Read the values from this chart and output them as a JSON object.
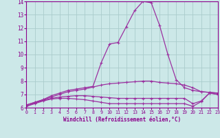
{
  "x_values": [
    0,
    1,
    2,
    3,
    4,
    5,
    6,
    7,
    8,
    9,
    10,
    11,
    12,
    13,
    14,
    15,
    16,
    17,
    18,
    19,
    20,
    21,
    22,
    23
  ],
  "lines": [
    {
      "y": [
        6.2,
        6.4,
        6.6,
        6.9,
        7.1,
        7.3,
        7.4,
        7.5,
        7.6,
        9.4,
        10.8,
        10.9,
        12.1,
        13.3,
        14.0,
        13.9,
        12.2,
        10.0,
        8.1,
        7.5,
        7.3,
        7.2,
        7.15,
        7.1
      ],
      "color": "#9B30A0",
      "marker": "+"
    },
    {
      "y": [
        6.2,
        6.4,
        6.6,
        6.8,
        7.0,
        7.2,
        7.3,
        7.4,
        7.55,
        7.7,
        7.8,
        7.85,
        7.9,
        7.95,
        8.0,
        8.0,
        7.9,
        7.85,
        7.8,
        7.7,
        7.5,
        7.2,
        7.15,
        7.1
      ],
      "color": "#9B30A0",
      "marker": "+"
    },
    {
      "y": [
        6.1,
        6.35,
        6.55,
        6.7,
        6.8,
        6.85,
        6.9,
        6.9,
        6.85,
        6.8,
        6.75,
        6.7,
        6.7,
        6.7,
        6.7,
        6.7,
        6.7,
        6.7,
        6.7,
        6.7,
        6.3,
        6.5,
        7.1,
        7.0
      ],
      "color": "#9B30A0",
      "marker": "+"
    },
    {
      "y": [
        6.1,
        6.3,
        6.5,
        6.65,
        6.7,
        6.7,
        6.65,
        6.6,
        6.5,
        6.4,
        6.3,
        6.3,
        6.3,
        6.3,
        6.3,
        6.3,
        6.3,
        6.3,
        6.3,
        6.3,
        6.1,
        6.45,
        7.1,
        7.0
      ],
      "color": "#9B30A0",
      "marker": "+"
    }
  ],
  "xlim": [
    0,
    23
  ],
  "ylim": [
    6,
    14
  ],
  "yticks": [
    6,
    7,
    8,
    9,
    10,
    11,
    12,
    13,
    14
  ],
  "xticks": [
    0,
    1,
    2,
    3,
    4,
    5,
    6,
    7,
    8,
    9,
    10,
    11,
    12,
    13,
    14,
    15,
    16,
    17,
    18,
    19,
    20,
    21,
    22,
    23
  ],
  "xlabel": "Windchill (Refroidissement éolien,°C)",
  "bg_color": "#cce8e8",
  "grid_color": "#aacccc",
  "line_color": "#8B008B",
  "tick_color": "#8B008B",
  "label_color": "#8B008B"
}
